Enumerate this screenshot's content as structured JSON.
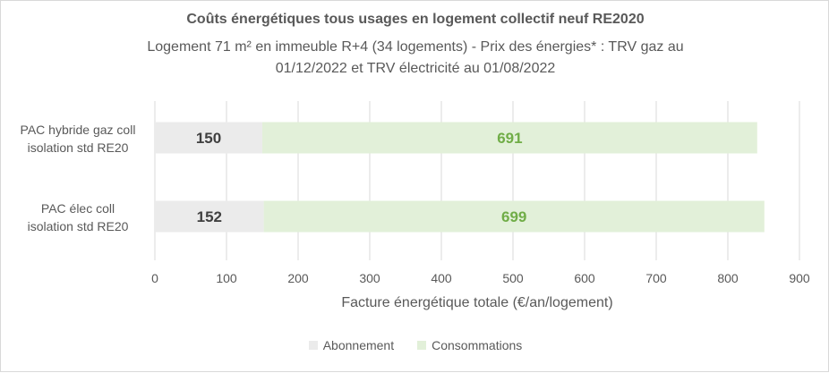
{
  "chart_data": {
    "type": "bar",
    "orientation": "horizontal",
    "stacked": true,
    "title": "Coûts énergétiques tous usages en logement collectif neuf RE2020",
    "subtitle_line1": "Logement 71 m² en immeuble R+4 (34 logements) - Prix des énergies* : TRV gaz au",
    "subtitle_line2": "01/12/2022 et TRV électricité au 01/08/2022",
    "categories": [
      [
        "PAC hybride gaz coll",
        "isolation std RE20"
      ],
      [
        "PAC élec coll",
        "isolation std RE20"
      ]
    ],
    "series": [
      {
        "name": "Abonnement",
        "values": [
          150,
          152
        ],
        "color": "#ebebeb",
        "label_color": "#404040"
      },
      {
        "name": "Consommations",
        "values": [
          691,
          699
        ],
        "color": "#e2f0d9",
        "label_color": "#70ad47"
      }
    ],
    "xlabel": "Facture énergétique totale (€/an/logement)",
    "xlim": [
      0,
      900
    ],
    "xticks": [
      "0",
      "100",
      "200",
      "300",
      "400",
      "500",
      "600",
      "700",
      "800",
      "900"
    ],
    "grid": true,
    "legend_position": "bottom"
  }
}
